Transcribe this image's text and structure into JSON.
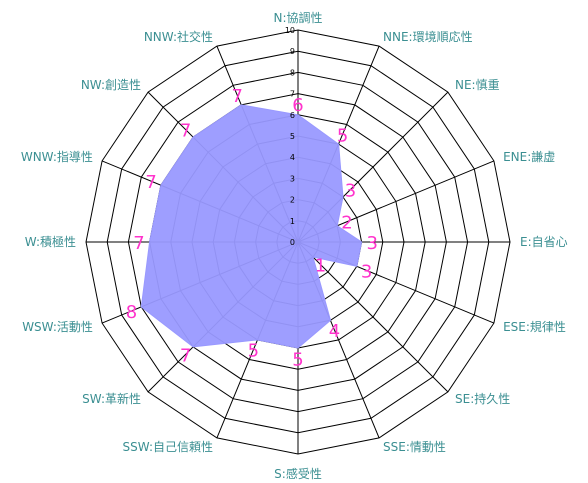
{
  "chart_data": {
    "type": "radar",
    "axes": [
      "N:協調性",
      "NNE:環境順応性",
      "NE:慎重",
      "ENE:謙虚",
      "E:自省心",
      "ESE:規律性",
      "SE:持久性",
      "SSE:情動性",
      "S:感受性",
      "SSW:自己信頼性",
      "SW:革新性",
      "WSW:活動性",
      "W:積極性",
      "WNW:指導性",
      "NW:創造性",
      "NNW:社交性"
    ],
    "values": [
      6,
      5,
      3,
      2,
      3,
      3,
      1,
      4,
      5,
      5,
      7,
      8,
      7,
      7,
      7,
      7
    ],
    "range": [
      0,
      10
    ],
    "ticks": [
      0,
      1,
      2,
      3,
      4,
      5,
      6,
      7,
      8,
      9,
      10
    ],
    "colors": {
      "fill": "#9999ff",
      "grid": "#000000",
      "axis_label": "#3b8f92",
      "value_label": "#ff33cc"
    }
  }
}
